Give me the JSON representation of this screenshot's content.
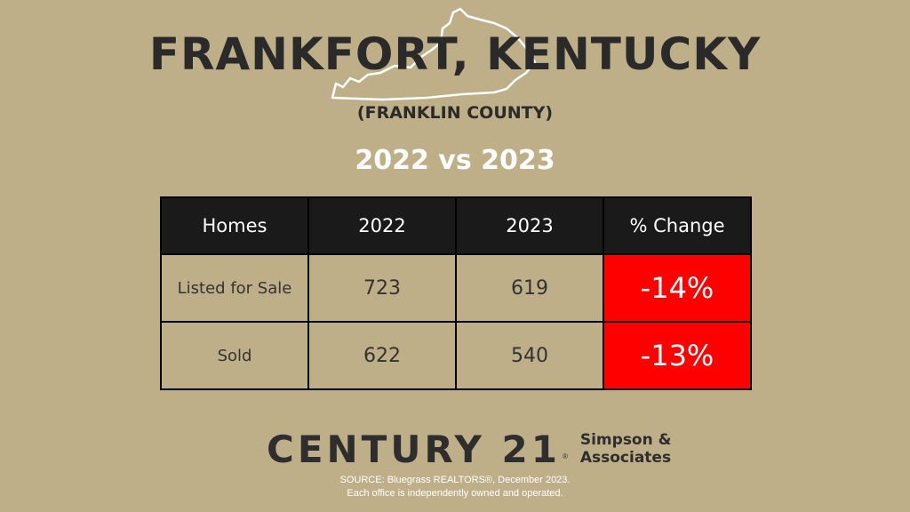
{
  "title": "FRANKFORT, KENTUCKY",
  "subtitle": "(FRANKLIN COUNTY)",
  "comparison": "2022 vs 2023",
  "table": {
    "headers": [
      "Homes",
      "2022",
      "2023",
      "% Change"
    ],
    "rows": [
      {
        "label": "Listed for Sale",
        "y2022": "723",
        "y2023": "619",
        "change": "-14%"
      },
      {
        "label": "Sold",
        "y2022": "622",
        "y2023": "540",
        "change": "-13%"
      }
    ]
  },
  "brand": {
    "name": "CENTURY 21",
    "mark": "®",
    "office_line1": "Simpson &",
    "office_line2": "Associates"
  },
  "footer": {
    "source": "SOURCE: Bluegrass REALTORS®, December 2023.",
    "disclaimer": "Each office is independently owned and operated."
  },
  "colors": {
    "background": "#beaf88",
    "header_bg": "#1a1a1a",
    "decline": "#ff0000"
  },
  "icons": {
    "state_outline": "kentucky-outline-icon"
  }
}
